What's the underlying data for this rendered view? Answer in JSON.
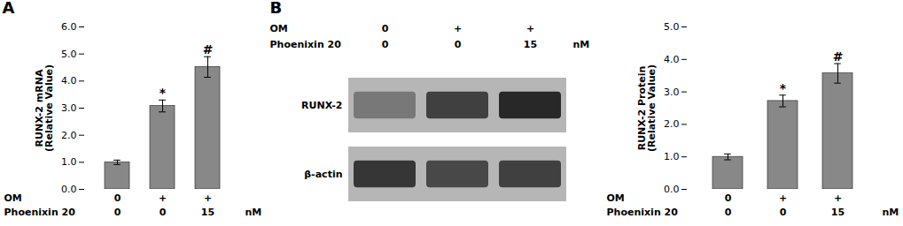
{
  "chart_data": [
    {
      "type": "bar",
      "title": "A",
      "categories": [
        [
          "0",
          "0"
        ],
        [
          "+",
          "0"
        ],
        [
          "+",
          "15"
        ]
      ],
      "category_labels": [
        "OM",
        "Phoenixin 20"
      ],
      "xlabel": "nM",
      "values": [
        1.0,
        3.08,
        4.52
      ],
      "errors": [
        0.08,
        0.22,
        0.38
      ],
      "significance": [
        null,
        "*",
        "#"
      ],
      "color": "#888888",
      "ylabel": "RUNX-2 mRNA\n(Relative Value)",
      "ylim": [
        0,
        6
      ],
      "yticks": [
        0,
        1,
        2,
        3,
        4,
        5,
        6
      ],
      "grid": false
    },
    {
      "type": "blot",
      "title": "B",
      "categories": [
        [
          "0",
          "0"
        ],
        [
          "+",
          "0"
        ],
        [
          "+",
          "15"
        ]
      ],
      "category_labels": [
        "OM",
        "Phoenixin 20"
      ],
      "xlabel": "nM",
      "series": [
        {
          "name": "RUNX-2",
          "colors": [
            "#787878",
            "#404040",
            "#282828"
          ]
        },
        {
          "name": "β-actin",
          "colors": [
            "#363636",
            "#484848",
            "#404040"
          ]
        }
      ]
    },
    {
      "type": "bar",
      "categories": [
        [
          "0",
          "0"
        ],
        [
          "+",
          "0"
        ],
        [
          "+",
          "15"
        ]
      ],
      "category_labels": [
        "OM",
        "Phoenixin 20"
      ],
      "xlabel": "nM",
      "values": [
        1.0,
        2.72,
        3.57
      ],
      "errors": [
        0.09,
        0.18,
        0.3
      ],
      "significance": [
        null,
        "*",
        "#"
      ],
      "color": "#888888",
      "ylabel": "RUNX-2 Protein\n(Relative Value)",
      "ylim": [
        0,
        5
      ],
      "yticks": [
        0,
        1,
        2,
        3,
        4,
        5
      ],
      "grid": false
    }
  ]
}
